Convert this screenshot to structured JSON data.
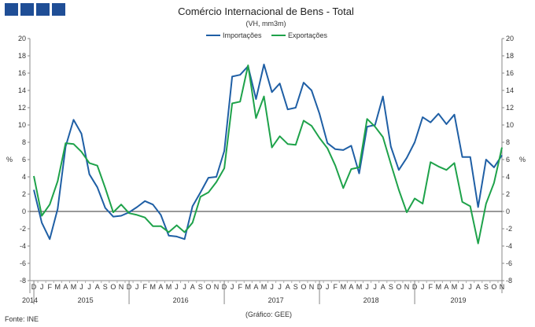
{
  "header": {
    "title": "Comércio Internacional de Bens - Total",
    "subtitle": "(VH, mm3m)"
  },
  "footer": {
    "source": "Fonte: INE",
    "credit": "(Gráfico: GEE)"
  },
  "chart_data": {
    "type": "line",
    "title": "Comércio Internacional de Bens - Total",
    "subtitle": "(VH, mm3m)",
    "ylabel_left": "%",
    "ylabel_right": "%",
    "ylim": [
      -8,
      20
    ],
    "yticks": [
      -8,
      -6,
      -4,
      -2,
      0,
      2,
      4,
      6,
      8,
      10,
      12,
      14,
      16,
      18,
      20
    ],
    "legend_position": "top-center",
    "grid": false,
    "x": [
      "D",
      "J",
      "F",
      "M",
      "A",
      "M",
      "J",
      "J",
      "A",
      "S",
      "O",
      "N",
      "D",
      "J",
      "F",
      "M",
      "A",
      "M",
      "J",
      "J",
      "A",
      "S",
      "O",
      "N",
      "D",
      "J",
      "F",
      "M",
      "A",
      "M",
      "J",
      "J",
      "A",
      "S",
      "O",
      "N",
      "D",
      "J",
      "F",
      "M",
      "A",
      "M",
      "J",
      "J",
      "A",
      "S",
      "O",
      "N",
      "D",
      "J",
      "F",
      "M",
      "A",
      "M",
      "J",
      "J",
      "A",
      "S",
      "O",
      "N"
    ],
    "years": [
      {
        "label": "2014",
        "index": 0
      },
      {
        "label": "2015",
        "index": 6.5
      },
      {
        "label": "2016",
        "index": 18.5
      },
      {
        "label": "2017",
        "index": 30.5
      },
      {
        "label": "2018",
        "index": 42.5
      },
      {
        "label": "2019",
        "index": 53.5
      }
    ],
    "year_separators": [
      0.5,
      12.5,
      24.5,
      36.5,
      48.5
    ],
    "series": [
      {
        "name": "Importações",
        "color": "#1f5fa5",
        "values": [
          2.5,
          -1.3,
          -3.2,
          0.3,
          7.5,
          10.6,
          9.0,
          4.3,
          2.8,
          0.4,
          -0.6,
          -0.5,
          -0.1,
          0.5,
          1.2,
          0.8,
          -0.4,
          -2.8,
          -2.9,
          -3.2,
          0.6,
          2.2,
          3.9,
          4.0,
          7.0,
          15.6,
          15.8,
          16.8,
          13.0,
          17.0,
          13.8,
          14.8,
          11.8,
          12.0,
          14.9,
          14.0,
          11.3,
          7.9,
          7.2,
          7.1,
          7.6,
          4.4,
          9.8,
          10.0,
          13.3,
          7.5,
          4.8,
          6.2,
          8.0,
          10.9,
          10.3,
          11.3,
          10.1,
          11.2,
          6.3,
          6.3,
          0.5,
          6.0,
          5.1,
          6.5
        ]
      },
      {
        "name": "Exportações",
        "color": "#1ea24a",
        "values": [
          4.1,
          -0.5,
          0.8,
          3.5,
          7.9,
          7.8,
          6.9,
          5.6,
          5.3,
          2.7,
          -0.1,
          0.8,
          -0.2,
          -0.4,
          -0.7,
          -1.7,
          -1.7,
          -2.4,
          -1.6,
          -2.4,
          -1.3,
          1.7,
          2.2,
          3.4,
          5.0,
          12.5,
          12.7,
          16.9,
          10.8,
          13.3,
          7.4,
          8.7,
          7.8,
          7.7,
          10.5,
          9.9,
          8.5,
          7.3,
          5.3,
          2.7,
          4.9,
          5.1,
          10.7,
          9.8,
          8.6,
          5.5,
          2.5,
          -0.1,
          1.5,
          0.9,
          5.7,
          5.2,
          4.8,
          5.6,
          1.1,
          0.6,
          -3.7,
          0.9,
          3.3,
          7.4
        ]
      }
    ]
  }
}
